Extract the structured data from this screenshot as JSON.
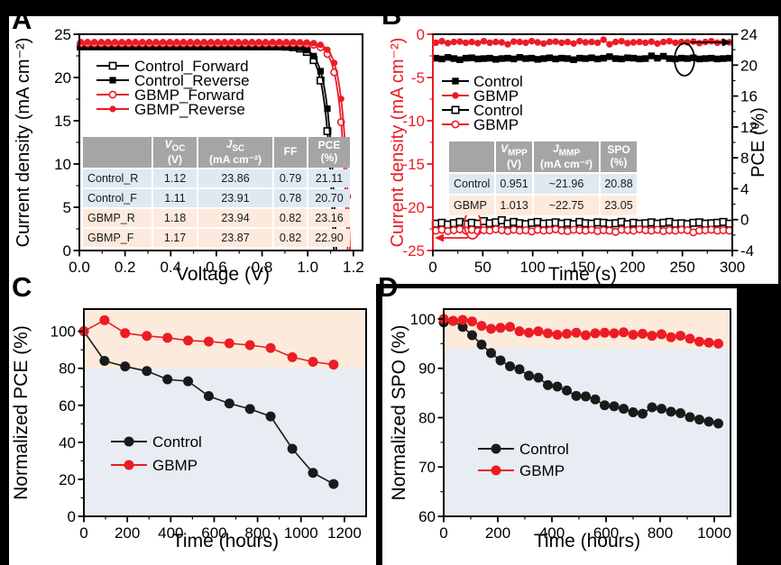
{
  "panel_labels": [
    "A",
    "B",
    "C",
    "D"
  ],
  "colors": {
    "control": "#000000",
    "control_marker": "#1a1a1a",
    "gbmp": "#ec1c24",
    "table_header_bg": "#a5a5a5",
    "control_row_bg": "#dfe9f2",
    "gbmp_row_bg": "#fdeadc",
    "shade_peach": "#fcebdc",
    "shade_blue": "#e8edf3"
  },
  "chart_data": [
    {
      "id": "A",
      "type": "line",
      "xlabel": "Voltage (V)",
      "ylabel": "Current density (mA cm⁻²)",
      "xlim": [
        0,
        1.24
      ],
      "ylim": [
        0,
        25
      ],
      "xticks": [
        0,
        0.2,
        0.4,
        0.6,
        0.8,
        1.0,
        1.2
      ],
      "xtick_labels": [
        "0.0",
        "0.2",
        "0.4",
        "0.6",
        "0.8",
        "1.0",
        "1.2"
      ],
      "yticks": [
        0,
        5,
        10,
        15,
        20,
        25
      ],
      "ytick_labels": [
        "0",
        "5",
        "10",
        "15",
        "20",
        "25"
      ],
      "series": [
        {
          "name": "Control_Forward",
          "marker": "square-open",
          "color": "#000000",
          "jsc": 23.6,
          "voc": 1.115,
          "knee": 0.033
        },
        {
          "name": "Control_Reverse",
          "marker": "square-filled",
          "color": "#000000",
          "jsc": 23.65,
          "voc": 1.125,
          "knee": 0.033
        },
        {
          "name": "GBMP_Forward",
          "marker": "circle-open",
          "color": "#ec1c24",
          "jsc": 23.95,
          "voc": 1.175,
          "knee": 0.03
        },
        {
          "name": "GBMP_Reverse",
          "marker": "circle-filled",
          "color": "#ec1c24",
          "jsc": 24.1,
          "voc": 1.185,
          "knee": 0.03
        }
      ],
      "table": {
        "headers": [
          {
            "text": ""
          },
          {
            "sym": "V",
            "italic": true,
            "sub": "OC",
            "unit": "(V)"
          },
          {
            "sym": "J",
            "italic": true,
            "sub": "SC",
            "unit": "(mA cm⁻²)"
          },
          {
            "sym": "FF"
          },
          {
            "sym": "PCE",
            "unit": "(%)"
          }
        ],
        "rows": [
          {
            "cells": [
              "Control_R",
              "1.12",
              "23.86",
              "0.79",
              "21.11"
            ],
            "group": "control"
          },
          {
            "cells": [
              "Control_F",
              "1.11",
              "23.91",
              "0.78",
              "20.70"
            ],
            "group": "control"
          },
          {
            "cells": [
              "GBMP_R",
              "1.18",
              "23.94",
              "0.82",
              "23.16"
            ],
            "group": "gbmp"
          },
          {
            "cells": [
              "GBMP_F",
              "1.17",
              "23.87",
              "0.82",
              "22.90"
            ],
            "group": "gbmp"
          }
        ]
      }
    },
    {
      "id": "B",
      "type": "line",
      "xlabel": "Time (s)",
      "ylabel_left": "Current density (mA cm⁻²)",
      "ylabel_right": "PCE (%)",
      "xlim": [
        0,
        300
      ],
      "ylim_left": [
        -25,
        0
      ],
      "ylim_right": [
        -4,
        24
      ],
      "xticks": [
        0,
        50,
        100,
        150,
        200,
        250,
        300
      ],
      "xtick_labels": [
        "0",
        "50",
        "100",
        "150",
        "200",
        "250",
        "300"
      ],
      "yticks_left": [
        0,
        -5,
        -10,
        -15,
        -20,
        -25
      ],
      "ytick_labels_left": [
        "0",
        "-5",
        "-10",
        "-15",
        "-20",
        "-25"
      ],
      "yticks_right": [
        24,
        20,
        16,
        12,
        8,
        4,
        0,
        -4
      ],
      "ytick_labels_right": [
        "24",
        "20",
        "16",
        "12",
        "8",
        "4",
        "0",
        "-4"
      ],
      "t_start": 3,
      "t_step": 6,
      "series": [
        {
          "name": "Control",
          "axis": "right",
          "marker": "square-filled",
          "color": "#000000",
          "values": [
            20.9,
            20.8,
            21.0,
            20.85,
            20.7,
            20.9,
            20.95,
            20.8,
            20.85,
            20.9,
            20.75,
            20.85,
            20.9,
            20.8,
            21.0,
            20.85,
            20.9,
            20.75,
            20.85,
            20.95,
            20.8,
            20.9,
            20.85,
            20.7,
            20.9,
            20.85,
            20.95,
            20.8,
            20.9,
            21.1,
            20.85,
            20.8,
            20.95,
            20.9,
            20.8,
            20.85,
            21.2,
            20.9,
            21.15,
            20.85,
            20.8,
            20.9,
            20.85,
            20.95,
            20.8,
            20.85,
            20.9,
            20.8,
            20.85,
            20.9
          ]
        },
        {
          "name": "GBMP",
          "axis": "right",
          "marker": "circle-filled",
          "color": "#ec1c24",
          "values": [
            22.9,
            23.1,
            22.85,
            23.0,
            23.05,
            22.9,
            23.0,
            22.85,
            23.1,
            22.9,
            23.0,
            22.95,
            22.7,
            23.05,
            23.0,
            22.9,
            23.1,
            22.95,
            22.8,
            23.0,
            23.05,
            22.9,
            23.0,
            22.8,
            23.1,
            22.95,
            23.0,
            22.9,
            23.3,
            22.7,
            23.0,
            23.1,
            22.85,
            22.95,
            23.0,
            22.9,
            23.05,
            22.8,
            23.0,
            23.1,
            22.9,
            23.0,
            22.95,
            23.05,
            22.85,
            23.0,
            23.1,
            22.9,
            23.0,
            22.95
          ]
        },
        {
          "name": "Control",
          "axis": "left",
          "marker": "square-open",
          "color": "#000000",
          "values": [
            -21.9,
            -21.8,
            -22.0,
            -21.85,
            -21.7,
            -21.95,
            -21.8,
            -21.9,
            -21.6,
            -21.85,
            -21.75,
            -21.5,
            -21.9,
            -21.7,
            -21.85,
            -21.95,
            -21.8,
            -21.7,
            -21.9,
            -21.85,
            -21.75,
            -21.9,
            -21.8,
            -21.95,
            -21.7,
            -21.85,
            -21.9,
            -21.75,
            -21.8,
            -21.9,
            -21.85,
            -21.7,
            -21.95,
            -21.8,
            -21.9,
            -21.85,
            -21.75,
            -21.9,
            -21.8,
            -21.7,
            -21.9,
            -21.85,
            -21.95,
            -21.8,
            -21.75,
            -21.9,
            -21.85,
            -21.8,
            -21.7,
            -21.9
          ]
        },
        {
          "name": "GBMP",
          "axis": "left",
          "marker": "circle-open",
          "color": "#ec1c24",
          "values": [
            -22.7,
            -22.6,
            -22.75,
            -22.65,
            -22.55,
            -22.7,
            -22.6,
            -22.75,
            -22.65,
            -22.7,
            -22.55,
            -22.65,
            -22.75,
            -22.6,
            -22.7,
            -22.65,
            -22.8,
            -22.6,
            -22.7,
            -22.65,
            -22.55,
            -22.7,
            -22.75,
            -22.6,
            -22.65,
            -22.7,
            -22.6,
            -22.75,
            -22.65,
            -22.7,
            -22.85,
            -22.6,
            -22.65,
            -22.7,
            -22.55,
            -22.65,
            -22.7,
            -22.6,
            -22.75,
            -22.65,
            -22.7,
            -22.6,
            -22.65,
            -22.9,
            -22.7,
            -22.65,
            -22.6,
            -22.7,
            -22.65,
            -22.7
          ]
        }
      ],
      "annotations": [
        {
          "name": "pce-axis-indicator",
          "shape": "ellipse-arrow-right",
          "color": "#000000"
        },
        {
          "name": "current-density-axis-indicator",
          "shape": "ellipse-arrow-left",
          "color": "#ec1c24"
        }
      ],
      "table": {
        "headers": [
          {
            "text": ""
          },
          {
            "sym": "V",
            "italic": true,
            "sub": "MPP",
            "unit": "(V)"
          },
          {
            "sym": "J",
            "italic": true,
            "sub": "MMP",
            "unit": "(mA cm⁻²)"
          },
          {
            "sym": "SPO",
            "unit": "(%)"
          }
        ],
        "rows": [
          {
            "cells": [
              "Control",
              "0.951",
              "~21.96",
              "20.88"
            ],
            "group": "control"
          },
          {
            "cells": [
              "GBMP",
              "1.013",
              "~22.75",
              "23.05"
            ],
            "group": "gbmp"
          }
        ]
      }
    },
    {
      "id": "C",
      "type": "line",
      "xlabel": "Time (hours)",
      "ylabel": "Normalized PCE (%)",
      "xlim": [
        0,
        1300
      ],
      "ylim": [
        0,
        112
      ],
      "xticks": [
        0,
        200,
        400,
        600,
        800,
        1000,
        1200
      ],
      "xtick_labels": [
        "0",
        "200",
        "400",
        "600",
        "800",
        "1000",
        "1200"
      ],
      "yticks": [
        0,
        20,
        40,
        60,
        80,
        100
      ],
      "ytick_labels": [
        "0",
        "20",
        "40",
        "60",
        "80",
        "100"
      ],
      "shade_boundary": 80,
      "x": [
        0,
        95,
        190,
        290,
        385,
        480,
        575,
        670,
        765,
        860,
        960,
        1055,
        1150
      ],
      "series": [
        {
          "name": "Control",
          "marker": "circle-filled",
          "color": "#1a1a1a",
          "values": [
            100,
            84,
            81,
            78.5,
            74,
            73,
            65,
            61,
            58,
            54,
            36.5,
            23.5,
            17.5
          ]
        },
        {
          "name": "GBMP",
          "marker": "circle-filled",
          "color": "#ec1c24",
          "values": [
            100,
            106,
            99,
            97.5,
            96.5,
            95,
            94.5,
            93.5,
            92.5,
            91,
            86,
            83.5,
            82
          ]
        }
      ]
    },
    {
      "id": "D",
      "type": "line",
      "xlabel": "Time (hours)",
      "ylabel": "Normalized SPO (%)",
      "xlim": [
        0,
        1060
      ],
      "ylim": [
        60,
        102
      ],
      "xticks": [
        0,
        200,
        400,
        600,
        800,
        1000
      ],
      "xtick_labels": [
        "0",
        "200",
        "400",
        "600",
        "800",
        "1000"
      ],
      "yticks": [
        60,
        70,
        80,
        90,
        100
      ],
      "ytick_labels": [
        "60",
        "70",
        "80",
        "90",
        "100"
      ],
      "shade_boundary": 94,
      "x": [
        0,
        35,
        70,
        105,
        140,
        175,
        210,
        245,
        280,
        315,
        350,
        385,
        420,
        455,
        490,
        525,
        560,
        595,
        630,
        665,
        700,
        735,
        770,
        805,
        840,
        875,
        910,
        945,
        980,
        1015
      ],
      "series": [
        {
          "name": "Control",
          "marker": "circle-filled",
          "color": "#1a1a1a",
          "values": [
            99.3,
            99.6,
            98.4,
            96.7,
            94.8,
            93.1,
            91.6,
            90.4,
            89.8,
            88.5,
            88.1,
            86.6,
            86.3,
            85.5,
            84.4,
            84.3,
            83.7,
            82.5,
            82.3,
            81.8,
            81.1,
            80.8,
            82.1,
            81.8,
            81.2,
            80.9,
            80.1,
            79.6,
            79.2,
            78.8
          ]
        },
        {
          "name": "GBMP",
          "marker": "circle-filled",
          "color": "#ec1c24",
          "values": [
            100,
            99.6,
            99.8,
            99.5,
            98.6,
            98.0,
            98.2,
            98.4,
            97.5,
            97.2,
            97.5,
            97.1,
            96.8,
            97.0,
            97.2,
            96.7,
            97.1,
            97.2,
            97.1,
            97.3,
            96.8,
            97.0,
            96.6,
            96.9,
            96.3,
            96.6,
            96.0,
            95.4,
            95.2,
            95.0
          ]
        }
      ]
    }
  ]
}
